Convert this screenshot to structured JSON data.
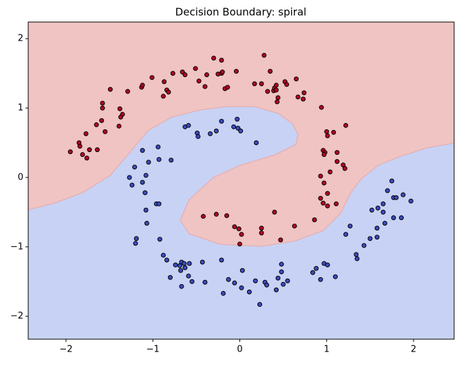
{
  "chart_data": {
    "type": "scatter",
    "title": "Decision Boundary: spiral",
    "xlim": [
      -2.435,
      2.467
    ],
    "ylim": [
      -2.33,
      2.24
    ],
    "xticks": [
      {
        "value": -2,
        "label": "−2"
      },
      {
        "value": -1,
        "label": "−1"
      },
      0,
      1,
      2
    ],
    "yticks": [
      {
        "value": -2,
        "label": "−2"
      },
      {
        "value": -1,
        "label": "−1"
      },
      0,
      1,
      2
    ],
    "series": [
      {
        "color": "#b40426",
        "x": [
          -1.95,
          -1.85,
          -1.81,
          -1.84,
          -1.76,
          -1.73,
          -1.77,
          -1.64,
          -1.55,
          -1.65,
          -1.59,
          -1.58,
          -1.58,
          -1.49,
          -1.38,
          -1.35,
          -1.37,
          -1.39,
          -1.29,
          -1.13,
          -1.12,
          -1.01,
          -0.87,
          -0.84,
          -0.88,
          -0.82,
          -0.77,
          -0.66,
          -0.63,
          -0.51,
          -0.47,
          -0.4,
          -0.38,
          -0.3,
          -0.25,
          -0.21,
          -0.21,
          -0.2,
          -0.17,
          -0.14,
          -0.04,
          0.28,
          0.17,
          0.25,
          0.32,
          0.35,
          0.39,
          0.4,
          0.42,
          0.42,
          0.44,
          0.43,
          0.52,
          0.54,
          0.65,
          0.67,
          0.73,
          0.74,
          0.94,
          1.0,
          1.01,
          1.08,
          1.22,
          0.96,
          0.98,
          0.97,
          1.12,
          1.12,
          1.19,
          1.21,
          0.93,
          1.04,
          0.97,
          1.01,
          0.93,
          0.96,
          1.01,
          1.11,
          0.86,
          0.63,
          0.47,
          0.4,
          0.25,
          0.25,
          0.02,
          0.0,
          -0.06,
          -0.01,
          -0.15,
          -0.27,
          -0.42
        ],
        "values": [
          0.37,
          0.5,
          0.33,
          0.45,
          0.28,
          0.4,
          0.63,
          0.4,
          0.66,
          0.76,
          0.82,
          1.0,
          1.07,
          1.27,
          0.99,
          0.91,
          0.87,
          0.74,
          1.24,
          1.3,
          1.33,
          1.44,
          1.38,
          1.26,
          1.17,
          1.23,
          1.5,
          1.52,
          1.48,
          1.57,
          1.39,
          1.31,
          1.48,
          1.72,
          1.49,
          1.5,
          1.69,
          1.52,
          1.28,
          1.3,
          1.53,
          1.76,
          1.35,
          1.35,
          1.24,
          1.53,
          1.25,
          1.29,
          1.33,
          1.26,
          1.15,
          1.09,
          1.38,
          1.34,
          1.42,
          1.16,
          1.13,
          1.22,
          1.01,
          0.66,
          0.6,
          0.65,
          0.75,
          0.39,
          0.36,
          0.33,
          0.36,
          0.23,
          0.18,
          0.13,
          0.02,
          0.08,
          -0.08,
          -0.23,
          -0.3,
          -0.37,
          -0.41,
          -0.38,
          -0.61,
          -0.7,
          -0.9,
          -0.5,
          -0.73,
          -0.8,
          -0.82,
          -0.96,
          -0.71,
          -0.74,
          -0.55,
          -0.53,
          -0.56
        ]
      },
      {
        "color": "#3b4cc0",
        "x": [
          -1.27,
          -1.24,
          -1.21,
          -1.12,
          -1.12,
          -1.09,
          -1.08,
          -1.05,
          -1.08,
          -1.07,
          -0.94,
          -0.93,
          -0.96,
          -0.93,
          -0.79,
          -1.19,
          -1.2,
          -0.92,
          -0.88,
          -0.84,
          -0.8,
          -0.74,
          -0.69,
          -0.68,
          -0.67,
          -0.64,
          -0.63,
          -0.58,
          -0.55,
          -0.59,
          -0.67,
          -0.4,
          -0.43,
          -0.21,
          -0.13,
          0.03,
          -0.06,
          -0.19,
          0.02,
          0.18,
          0.23,
          0.11,
          0.29,
          0.31,
          0.42,
          0.44,
          0.48,
          0.48,
          0.5,
          0.55,
          0.84,
          0.88,
          0.93,
          0.97,
          1.01,
          1.1,
          1.22,
          1.27,
          1.34,
          1.35,
          1.43,
          1.5,
          1.52,
          1.58,
          1.58,
          1.59,
          1.65,
          1.65,
          1.67,
          1.7,
          1.77,
          1.75,
          1.77,
          1.8,
          1.86,
          1.88,
          1.97,
          -0.63,
          -0.59,
          -0.49,
          -0.48,
          -0.34,
          -0.27,
          -0.21,
          -0.07,
          -0.03,
          -0.02,
          0.01,
          0.19
        ],
        "values": [
          0.0,
          -0.11,
          0.15,
          0.39,
          -0.07,
          -0.22,
          0.03,
          0.22,
          -0.47,
          -0.66,
          0.44,
          0.26,
          -0.38,
          -0.38,
          0.25,
          -0.88,
          -0.95,
          -0.89,
          -1.12,
          -1.19,
          -1.44,
          -1.26,
          -1.27,
          -1.34,
          -1.22,
          -1.24,
          -1.3,
          -1.24,
          -1.5,
          -1.42,
          -1.57,
          -1.51,
          -1.22,
          -1.19,
          -1.47,
          -1.34,
          -1.52,
          -1.67,
          -1.59,
          -1.49,
          -1.83,
          -1.65,
          -1.51,
          -1.55,
          -1.62,
          -1.45,
          -1.36,
          -1.25,
          -1.54,
          -1.49,
          -1.37,
          -1.31,
          -1.47,
          -1.24,
          -1.26,
          -1.43,
          -0.82,
          -0.7,
          -1.11,
          -1.17,
          -0.98,
          -0.88,
          -0.47,
          -0.86,
          -0.73,
          -0.44,
          -0.5,
          -0.38,
          -0.66,
          -0.19,
          -0.58,
          -0.05,
          -0.29,
          -0.29,
          -0.58,
          -0.25,
          -0.34,
          0.73,
          0.75,
          0.64,
          0.59,
          0.63,
          0.67,
          0.81,
          0.73,
          0.84,
          0.71,
          0.67,
          0.5
        ]
      }
    ]
  }
}
